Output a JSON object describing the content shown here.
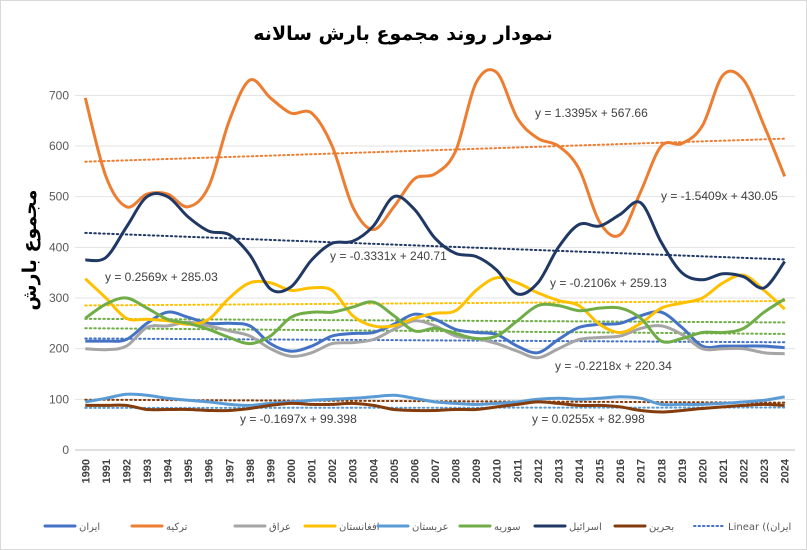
{
  "chart_data": {
    "type": "line",
    "title": "نمودار روند مجموع بارش سالانه",
    "ylabel": "مجموع بارش",
    "xlabel": "",
    "ylim": [
      0,
      750
    ],
    "yticks": [
      0,
      100,
      200,
      300,
      400,
      500,
      600,
      700
    ],
    "grid": true,
    "legend_position": "bottom",
    "categories": [
      "1990",
      "1991",
      "1992",
      "1993",
      "1994",
      "1995",
      "1996",
      "1997",
      "1998",
      "1999",
      "2000",
      "2001",
      "2002",
      "2003",
      "2004",
      "2005",
      "2006",
      "2007",
      "2008",
      "2009",
      "2010",
      "2011",
      "2012",
      "2013",
      "2014",
      "2015",
      "2016",
      "2017",
      "2018",
      "2019",
      "2020",
      "2021",
      "2022",
      "2023",
      "2024"
    ],
    "series": [
      {
        "name": "ایران",
        "color": "#4472C4",
        "values": [
          215,
          215,
          218,
          250,
          272,
          262,
          250,
          250,
          245,
          210,
          195,
          205,
          225,
          230,
          232,
          248,
          268,
          258,
          238,
          232,
          228,
          205,
          192,
          218,
          242,
          248,
          250,
          265,
          272,
          242,
          205,
          205,
          205,
          205,
          202
        ]
      },
      {
        "name": "ترکیه",
        "color": "#ED7D31",
        "values": [
          695,
          540,
          480,
          505,
          505,
          480,
          520,
          650,
          730,
          695,
          665,
          665,
          600,
          480,
          435,
          480,
          535,
          545,
          590,
          725,
          745,
          655,
          615,
          600,
          555,
          450,
          425,
          510,
          600,
          605,
          640,
          740,
          730,
          640,
          540
        ]
      },
      {
        "name": "عراق",
        "color": "#A5A5A5",
        "values": [
          200,
          198,
          205,
          242,
          245,
          252,
          245,
          235,
          225,
          200,
          185,
          192,
          210,
          212,
          218,
          238,
          255,
          245,
          225,
          220,
          210,
          195,
          182,
          200,
          218,
          222,
          225,
          240,
          245,
          228,
          200,
          200,
          200,
          192,
          190
        ]
      },
      {
        "name": "افغانستان",
        "color": "#FFC000",
        "values": [
          338,
          300,
          260,
          258,
          255,
          248,
          258,
          300,
          330,
          330,
          315,
          320,
          315,
          265,
          245,
          245,
          260,
          270,
          275,
          315,
          340,
          330,
          310,
          295,
          285,
          248,
          232,
          250,
          280,
          290,
          300,
          330,
          345,
          315,
          278
        ]
      },
      {
        "name": "عربستان",
        "color": "#5B9BD5",
        "values": [
          95,
          102,
          110,
          108,
          102,
          98,
          95,
          90,
          88,
          92,
          95,
          98,
          100,
          102,
          105,
          108,
          102,
          95,
          92,
          90,
          92,
          95,
          100,
          102,
          100,
          102,
          105,
          102,
          90,
          90,
          90,
          92,
          95,
          98,
          105
        ]
      },
      {
        "name": "سوریه",
        "color": "#70AD47",
        "values": [
          260,
          288,
          300,
          280,
          258,
          250,
          238,
          222,
          210,
          225,
          262,
          272,
          272,
          282,
          292,
          265,
          235,
          240,
          230,
          220,
          225,
          255,
          285,
          285,
          275,
          280,
          280,
          260,
          215,
          220,
          232,
          232,
          240,
          272,
          298
        ]
      },
      {
        "name": "اسرائیل",
        "color": "#203864",
        "values": [
          375,
          380,
          440,
          500,
          500,
          460,
          432,
          425,
          385,
          318,
          322,
          375,
          408,
          412,
          442,
          500,
          475,
          418,
          388,
          382,
          355,
          308,
          330,
          400,
          445,
          442,
          465,
          488,
          410,
          350,
          336,
          348,
          342,
          320,
          372
        ]
      },
      {
        "name": "بحرین",
        "color": "#843C0C",
        "values": [
          88,
          88,
          88,
          80,
          80,
          80,
          78,
          78,
          82,
          88,
          92,
          90,
          90,
          92,
          88,
          80,
          78,
          78,
          80,
          80,
          85,
          90,
          95,
          92,
          88,
          88,
          85,
          78,
          75,
          78,
          82,
          85,
          88,
          90,
          88
        ]
      }
    ],
    "trendline": {
      "name": "Linear ((ایران",
      "color": "#4472C4",
      "intercept": 220.34,
      "slope": -0.2218
    },
    "trend_equations": [
      {
        "text": "y = 1.3395x + 567.66",
        "slope": 1.3395,
        "intercept": 567.66,
        "color": "#ED7D31"
      },
      {
        "text": "y = -1.5409x + 430.05",
        "slope": -1.5409,
        "intercept": 430.05,
        "color": "#203864"
      },
      {
        "text": "y = 0.2569x + 285.03",
        "slope": 0.2569,
        "intercept": 285.03,
        "color": "#FFC000"
      },
      {
        "text": "y = -0.3331x + 240.71",
        "slope": -0.3331,
        "intercept": 240.71,
        "color": "#70AD47"
      },
      {
        "text": "y = -0.2106x + 259.13",
        "slope": -0.2106,
        "intercept": 259.13,
        "color": "#70AD47"
      },
      {
        "text": "y = -0.2218x + 220.34",
        "slope": -0.2218,
        "intercept": 220.34,
        "color": "#4472C4"
      },
      {
        "text": "y = -0.1697x + 99.398",
        "slope": -0.1697,
        "intercept": 99.398,
        "color": "#843C0C"
      },
      {
        "text": "y = 0.0255x + 82.998",
        "slope": 0.0255,
        "intercept": 82.998,
        "color": "#5B9BD5"
      }
    ]
  }
}
